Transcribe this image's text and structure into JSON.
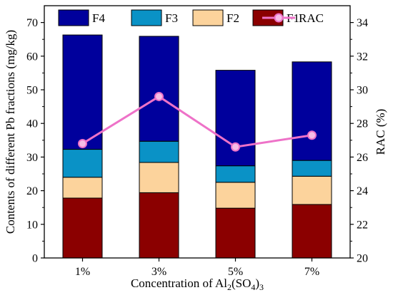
{
  "chart_data": {
    "type": "bar",
    "stacked": true,
    "categories": [
      "1%",
      "3%",
      "5%",
      "7%"
    ],
    "series": [
      {
        "name": "F1",
        "color": "#8b0000",
        "values": [
          17.8,
          19.4,
          14.8,
          15.9
        ]
      },
      {
        "name": "F2",
        "color": "#fcd39c",
        "values": [
          6.2,
          9.0,
          7.7,
          8.4
        ]
      },
      {
        "name": "F3",
        "color": "#0a92c6",
        "values": [
          8.3,
          6.3,
          4.9,
          4.7
        ]
      },
      {
        "name": "F4",
        "color": "#00009c",
        "values": [
          34.0,
          31.2,
          28.4,
          29.3
        ]
      }
    ],
    "line_series": {
      "name": "RAC",
      "color": "#ee72c8",
      "axis": "right",
      "values": [
        26.8,
        29.6,
        26.6,
        27.3
      ]
    },
    "xlabel": {
      "prefix": "Concentration of Al",
      "sub1": "2",
      "mid": "(SO",
      "sub2": "4",
      "suffix": ")",
      "sub3": "3"
    },
    "ylabel": "Contents of different Pb fractions (mg/kg)",
    "y2label": "RAC (%)",
    "ylim": [
      0,
      75
    ],
    "y2lim": [
      20,
      35
    ],
    "yticks": [
      0,
      10,
      20,
      30,
      40,
      50,
      60,
      70
    ],
    "y2ticks": [
      20,
      22,
      24,
      26,
      28,
      30,
      32,
      34
    ],
    "legend": {
      "placement": "top",
      "order": [
        "F4",
        "F3",
        "F2",
        "F1",
        "RAC"
      ]
    },
    "grid": false
  }
}
